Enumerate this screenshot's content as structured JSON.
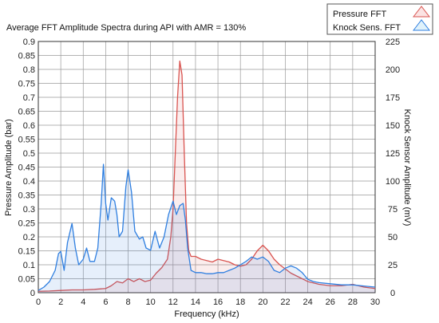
{
  "chart_data": {
    "type": "line",
    "title": "Average FFT Amplitude Spectra during API with AMR = 130%",
    "xlabel": "Frequency (kHz)",
    "ylabel": "Pressure Amplitude (bar)",
    "y2label": "Knock Sensor Amplitude (mV)",
    "xlim": [
      0,
      30
    ],
    "ylim": [
      0,
      0.9
    ],
    "y2lim": [
      0,
      225
    ],
    "grid": true,
    "legend_position": "top-right",
    "x_ticks": [
      "0",
      "2",
      "4",
      "6",
      "8",
      "10",
      "12",
      "14",
      "16",
      "18",
      "20",
      "22",
      "24",
      "26",
      "28",
      "30"
    ],
    "y_ticks": [
      "0",
      "0.05",
      "0.1",
      "0.15",
      "0.2",
      "0.25",
      "0.3",
      "0.35",
      "0.4",
      "0.45",
      "0.5",
      "0.55",
      "0.6",
      "0.65",
      "0.7",
      "0.75",
      "0.8",
      "0.85",
      "0.9"
    ],
    "y2_ticks": [
      "0",
      "25",
      "50",
      "75",
      "100",
      "125",
      "150",
      "175",
      "200",
      "225"
    ],
    "series": [
      {
        "name": "Pressure FFT",
        "axis": "left",
        "color": "#d9534f",
        "x": [
          0,
          1,
          2,
          3,
          4,
          5,
          6,
          6.5,
          7,
          7.5,
          8,
          8.5,
          9,
          9.5,
          10,
          10.5,
          11,
          11.5,
          11.8,
          12,
          12.2,
          12.4,
          12.6,
          12.8,
          13,
          13.2,
          13.4,
          13.6,
          13.8,
          14,
          14.5,
          15,
          15.5,
          16,
          16.5,
          17,
          17.5,
          18,
          18.5,
          19,
          19.5,
          20,
          20.5,
          21,
          21.5,
          22,
          22.5,
          23,
          23.5,
          24,
          25,
          26,
          27,
          28,
          29,
          30
        ],
        "y": [
          0.005,
          0.006,
          0.008,
          0.01,
          0.01,
          0.012,
          0.015,
          0.025,
          0.04,
          0.035,
          0.05,
          0.04,
          0.05,
          0.04,
          0.045,
          0.07,
          0.09,
          0.12,
          0.2,
          0.3,
          0.5,
          0.7,
          0.83,
          0.78,
          0.5,
          0.25,
          0.15,
          0.13,
          0.13,
          0.13,
          0.12,
          0.115,
          0.11,
          0.12,
          0.115,
          0.11,
          0.1,
          0.095,
          0.1,
          0.12,
          0.15,
          0.17,
          0.15,
          0.12,
          0.1,
          0.085,
          0.07,
          0.06,
          0.05,
          0.04,
          0.03,
          0.025,
          0.025,
          0.03,
          0.02,
          0.015
        ]
      },
      {
        "name": "Knock Sens. FFT",
        "axis": "right",
        "color": "#2f7fe0",
        "x": [
          0,
          0.5,
          1,
          1.5,
          1.8,
          2,
          2.3,
          2.6,
          3,
          3.3,
          3.6,
          4,
          4.3,
          4.6,
          5,
          5.3,
          5.6,
          5.8,
          6,
          6.2,
          6.5,
          6.8,
          7,
          7.2,
          7.5,
          7.8,
          8,
          8.3,
          8.6,
          9,
          9.3,
          9.6,
          10,
          10.4,
          10.8,
          11.2,
          11.6,
          12,
          12.3,
          12.6,
          12.9,
          13.1,
          13.3,
          13.6,
          14,
          14.5,
          15,
          15.5,
          16,
          16.5,
          17,
          17.5,
          18,
          18.5,
          19,
          19.5,
          20,
          20.5,
          21,
          21.5,
          22,
          22.5,
          23,
          23.5,
          24,
          24.5,
          25,
          26,
          27,
          28,
          29,
          30
        ],
        "y": [
          2,
          5,
          10,
          20,
          35,
          37,
          20,
          45,
          62,
          40,
          25,
          30,
          40,
          28,
          28,
          40,
          80,
          115,
          80,
          65,
          85,
          82,
          70,
          50,
          55,
          95,
          110,
          90,
          55,
          48,
          50,
          40,
          38,
          55,
          40,
          50,
          70,
          82,
          70,
          78,
          80,
          65,
          40,
          20,
          18,
          18,
          17,
          17,
          18,
          18,
          20,
          22,
          25,
          28,
          32,
          30,
          32,
          28,
          20,
          18,
          22,
          24,
          22,
          18,
          12,
          10,
          9,
          8,
          7,
          7,
          6,
          5
        ]
      }
    ]
  }
}
